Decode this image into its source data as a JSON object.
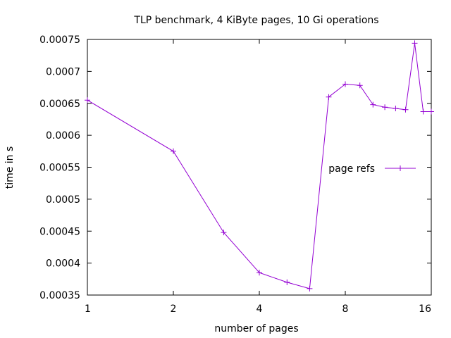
{
  "chart_data": {
    "type": "line",
    "title": "TLP benchmark, 4 KiByte pages, 10 Gi operations",
    "xlabel": "number of pages",
    "ylabel": "time in s",
    "xscale": "log2",
    "xlim": [
      1,
      16
    ],
    "ylim": [
      0.00035,
      0.00075
    ],
    "x_ticks": [
      1,
      2,
      4,
      8,
      16
    ],
    "x_tick_labels": [
      "1",
      "2",
      "4",
      "8",
      "16"
    ],
    "y_ticks": [
      0.00035,
      0.0004,
      0.00045,
      0.0005,
      0.00055,
      0.0006,
      0.00065,
      0.0007,
      0.00075
    ],
    "y_tick_labels": [
      "0.00035",
      "0.0004",
      "0.00045",
      "0.0005",
      "0.00055",
      "0.0006",
      "0.00065",
      "0.0007",
      "0.00075"
    ],
    "legend_position": "right",
    "series": [
      {
        "name": "page refs",
        "color": "#9400d3",
        "x": [
          1,
          2,
          3,
          4,
          5,
          6,
          7,
          8,
          9,
          10,
          11,
          12,
          13,
          14,
          15,
          16
        ],
        "values": [
          0.000655,
          0.000575,
          0.000448,
          0.000385,
          0.00037,
          0.00036,
          0.00066,
          0.00068,
          0.000678,
          0.000648,
          0.000644,
          0.000642,
          0.00064,
          0.000744,
          0.000637,
          0.000637
        ]
      }
    ]
  }
}
